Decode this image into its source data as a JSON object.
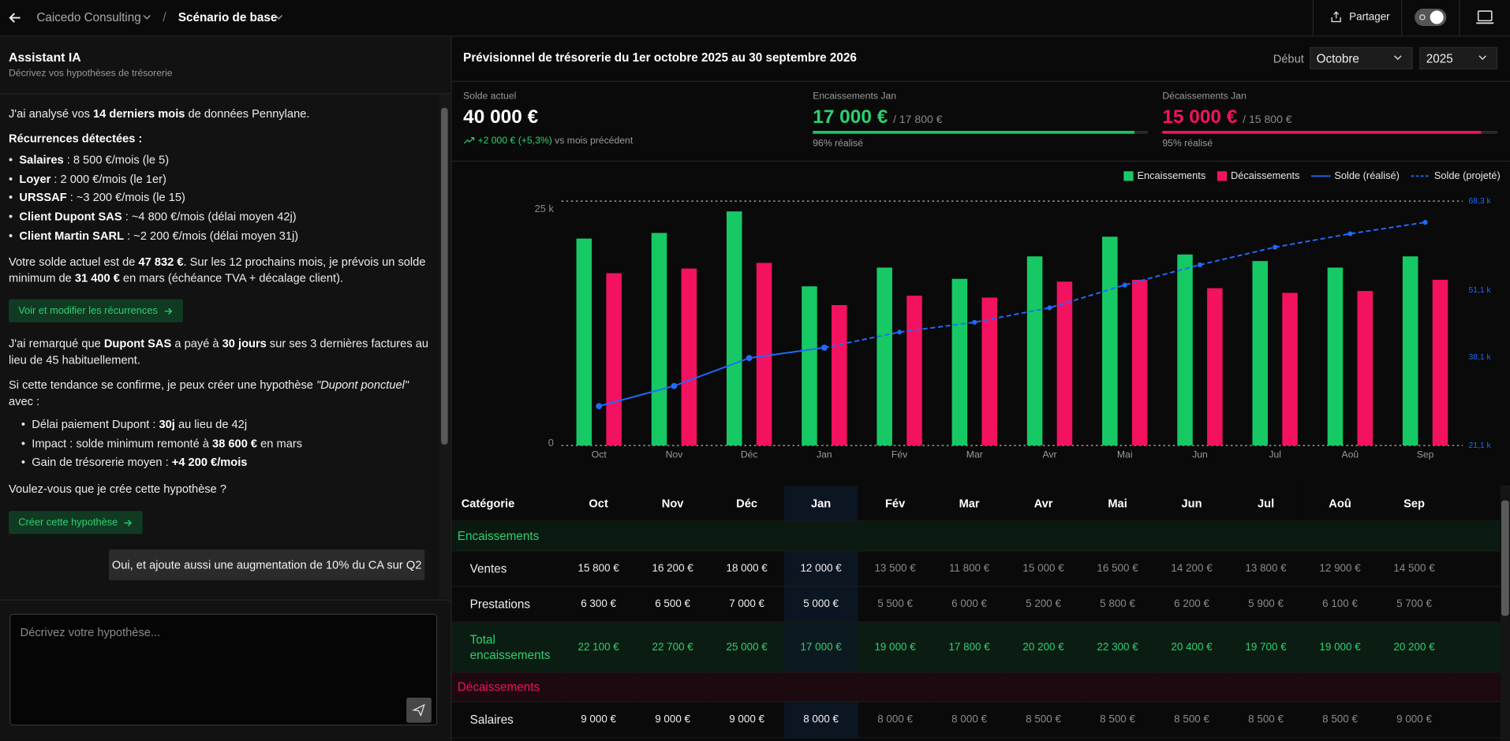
{
  "header": {
    "company": "Caicedo Consulting",
    "scenario": "Scénario de base",
    "share": "Partager"
  },
  "assistant": {
    "title": "Assistant IA",
    "subtitle": "Décrivez vos hypothèses de trésorerie",
    "intro": [
      {
        "t": "J'ai analysé vos "
      },
      {
        "b": "14 derniers mois"
      },
      {
        "t": " de données Pennylane."
      }
    ],
    "recurrences_title": [
      {
        "b": "Récurrences détectées :"
      }
    ],
    "recurrences": [
      [
        {
          "b": "Salaires"
        },
        {
          "t": " : 8 500 €/mois (le 5)"
        }
      ],
      [
        {
          "b": "Loyer"
        },
        {
          "t": " : 2 000 €/mois (le 1er)"
        }
      ],
      [
        {
          "b": "URSSAF"
        },
        {
          "t": " : ~3 200 €/mois (le 15)"
        }
      ],
      [
        {
          "b": "Client Dupont SAS"
        },
        {
          "t": " : ~4 800 €/mois (délai moyen 42j)"
        }
      ],
      [
        {
          "b": "Client Martin SARL"
        },
        {
          "t": " : ~2 200 €/mois (délai moyen 31j)"
        }
      ]
    ],
    "balance_note": [
      {
        "t": "Votre solde actuel est de "
      },
      {
        "b": "47 832 €"
      },
      {
        "t": ". Sur les 12 prochains mois, je prévois un solde minimum de "
      },
      {
        "b": "31 400 €"
      },
      {
        "t": " en mars (échéance TVA + décalage client)."
      }
    ],
    "recurrences_button": "Voir et modifier les récurrences",
    "observation": [
      {
        "t": "J'ai remarqué que "
      },
      {
        "b": "Dupont SAS"
      },
      {
        "t": " a payé à "
      },
      {
        "b": "30 jours"
      },
      {
        "t": " sur ses 3 dernières factures au lieu de 45 habituellement."
      }
    ],
    "proposal": [
      {
        "t": "Si cette tendance se confirme, je peux créer une hypothèse "
      },
      {
        "i": "\"Dupont ponctuel\""
      },
      {
        "t": " avec :"
      }
    ],
    "proposal_items": [
      [
        {
          "t": "Délai paiement Dupont : "
        },
        {
          "b": "30j"
        },
        {
          "t": " au lieu de 42j"
        }
      ],
      [
        {
          "t": "Impact : solde minimum remonté à "
        },
        {
          "b": "38 600 €"
        },
        {
          "t": " en mars"
        }
      ],
      [
        {
          "t": "Gain de trésorerie moyen : "
        },
        {
          "b": "+4 200 €/mois"
        }
      ]
    ],
    "question": [
      {
        "t": "Voulez-vous que je crée cette hypothèse ?"
      }
    ],
    "create_button": "Créer cette hypothèse",
    "user_message": "Oui, et ajoute aussi une augmentation de 10% du CA sur Q2",
    "input_placeholder": "Décrivez votre hypothèse..."
  },
  "panel": {
    "title": "Prévisionnel de trésorerie du 1er octobre 2025 au 30 septembre 2026",
    "start_label": "Début",
    "start_month": "Octobre",
    "start_year": "2025"
  },
  "summary": {
    "balance": {
      "label": "Solde actuel",
      "value": "40 000 €",
      "change": "+2 000 € (+5,3%)",
      "change_note": "vs mois précédent"
    },
    "receipts": {
      "label": "Encaissements Jan",
      "value": "17 000 €",
      "target": "/ 17 800 €",
      "progress": "96% réalisé"
    },
    "payments": {
      "label": "Décaissements Jan",
      "value": "15 000 €",
      "target": "/ 15 800 €",
      "progress": "95% réalisé"
    }
  },
  "chart_data": {
    "type": "bar",
    "categories": [
      "Oct",
      "Nov",
      "Déc",
      "Jan",
      "Fév",
      "Mar",
      "Avr",
      "Mai",
      "Jun",
      "Jul",
      "Aoû",
      "Sep"
    ],
    "ylim": [
      0,
      26100
    ],
    "yticks": [
      {
        "value": 0,
        "label": "0"
      },
      {
        "value": 25000,
        "label": "25 k"
      }
    ],
    "y2lim": [
      21100,
      68300
    ],
    "y2ticks": [
      {
        "value": 21100,
        "label": "21,1 k"
      },
      {
        "value": 38100,
        "label": "38,1 k"
      },
      {
        "value": 51100,
        "label": "51,1 k"
      },
      {
        "value": 68300,
        "label": "68,3 k"
      }
    ],
    "legend": "top-right",
    "series": [
      {
        "name": "Encaissements",
        "color": "#17c964",
        "values": [
          22100,
          22700,
          25000,
          17000,
          19000,
          17800,
          20200,
          22300,
          20400,
          19700,
          19000,
          20200
        ]
      },
      {
        "name": "Décaissements",
        "color": "#f31260",
        "values": [
          18400,
          18900,
          19500,
          15000,
          16000,
          15800,
          17500,
          17700,
          16800,
          16300,
          16500,
          17700
        ]
      },
      {
        "name": "Solde (réalisé)",
        "type": "line",
        "axis": "y2",
        "color": "#1f6bff",
        "line_style": "solid",
        "values": [
          28700,
          32600,
          38000,
          40000,
          null,
          null,
          null,
          null,
          null,
          null,
          null,
          null
        ]
      },
      {
        "name": "Solde (projeté)",
        "type": "line",
        "axis": "y2",
        "color": "#1f6bff",
        "line_style": "dashed",
        "values": [
          null,
          null,
          null,
          40000,
          43000,
          44900,
          47700,
          52100,
          56000,
          59400,
          62000,
          64200
        ]
      }
    ]
  },
  "table": {
    "header": [
      "Catégorie",
      "Oct",
      "Nov",
      "Déc",
      "Jan",
      "Fév",
      "Mar",
      "Avr",
      "Mai",
      "Jun",
      "Jul",
      "Aoû",
      "Sep"
    ],
    "sections": [
      {
        "title": "Encaissements",
        "rows": [
          {
            "label": "Ventes",
            "values": [
              "15 800 €",
              "16 200 €",
              "18 000 €",
              "12 000 €",
              "13 500 €",
              "11 800 €",
              "15 000 €",
              "16 500 €",
              "14 200 €",
              "13 800 €",
              "12 900 €",
              "14 500 €"
            ]
          },
          {
            "label": "Prestations",
            "values": [
              "6 300 €",
              "6 500 €",
              "7 000 €",
              "5 000 €",
              "5 500 €",
              "6 000 €",
              "5 200 €",
              "5 800 €",
              "6 200 €",
              "5 900 €",
              "6 100 €",
              "5 700 €"
            ]
          },
          {
            "label": "Total encaissements",
            "values": [
              "22 100 €",
              "22 700 €",
              "25 000 €",
              "17 000 €",
              "19 000 €",
              "17 800 €",
              "20 200 €",
              "22 300 €",
              "20 400 €",
              "19 700 €",
              "19 000 €",
              "20 200 €"
            ]
          }
        ]
      },
      {
        "title": "Décaissements",
        "rows": [
          {
            "label": "Salaires",
            "values": [
              "9 000 €",
              "9 000 €",
              "9 000 €",
              "8 000 €",
              "8 000 €",
              "8 000 €",
              "8 500 €",
              "8 500 €",
              "8 500 €",
              "8 500 €",
              "8 500 €",
              "9 000 €"
            ]
          }
        ]
      }
    ]
  }
}
